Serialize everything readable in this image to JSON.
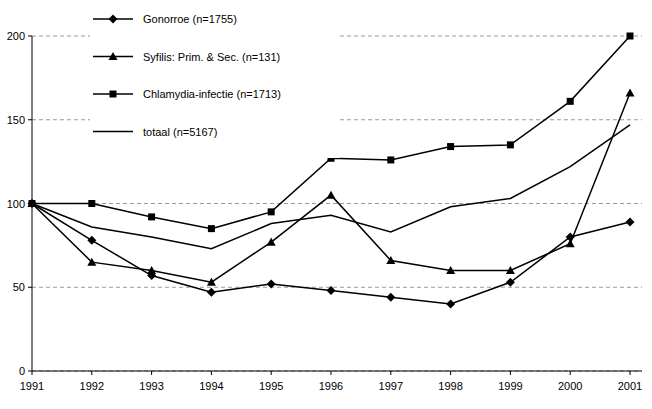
{
  "chart_data": {
    "type": "line",
    "categories": [
      "1991",
      "1992",
      "1993",
      "1994",
      "1995",
      "1996",
      "1997",
      "1998",
      "1999",
      "2000",
      "2001"
    ],
    "series": [
      {
        "name": "Gonorroe (n=1755)",
        "color": "#000000",
        "marker": "diamond",
        "values": [
          100,
          78,
          57,
          47,
          52,
          48,
          44,
          40,
          53,
          80,
          89
        ]
      },
      {
        "name": "Syfilis: Prim. & Sec. (n=131)",
        "color": "#000000",
        "marker": "triangle",
        "values": [
          100,
          65,
          60,
          53,
          77,
          105,
          66,
          60,
          60,
          76,
          166
        ]
      },
      {
        "name": "Chlamydia-infectie (n=1713)",
        "color": "#000000",
        "marker": "square",
        "values": [
          100,
          100,
          92,
          85,
          95,
          127,
          126,
          134,
          135,
          161,
          200
        ]
      },
      {
        "name": "totaal (n=5167)",
        "color": "#000000",
        "marker": "none",
        "values": [
          100,
          86,
          80,
          73,
          88,
          93,
          83,
          98,
          103,
          122,
          147
        ]
      }
    ],
    "ylim": [
      0,
      200
    ],
    "yticks": [
      0,
      50,
      100,
      150,
      200
    ],
    "grid": true,
    "legend": "upper left"
  }
}
